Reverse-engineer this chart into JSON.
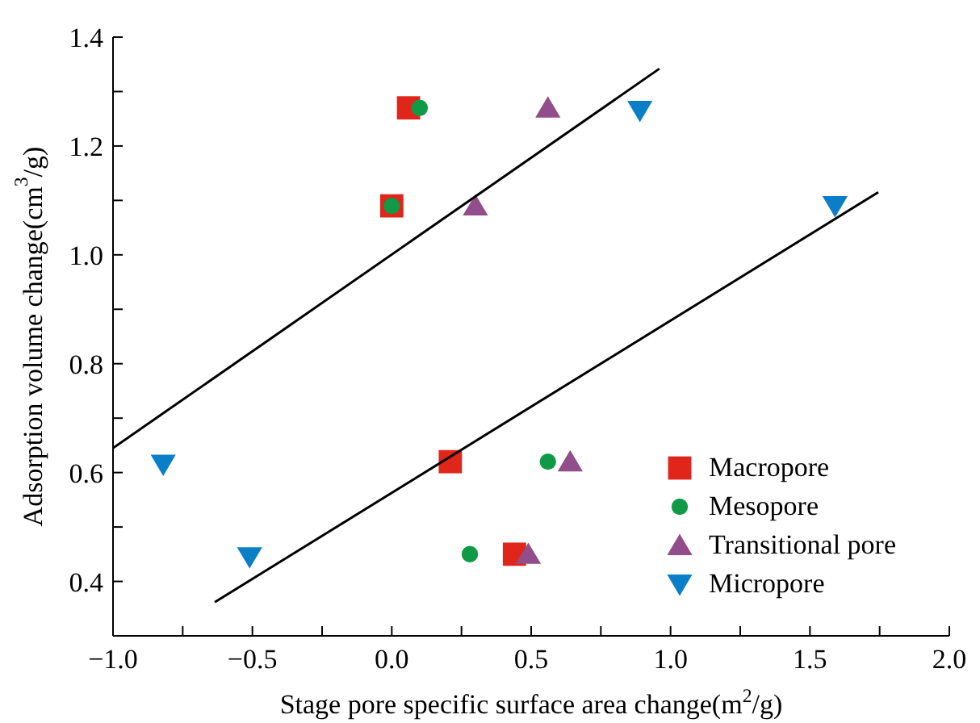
{
  "chart_data": {
    "type": "scatter",
    "xlabel": "Stage pore specific surface area change(m$^{2}$/g)",
    "ylabel": "Adsorption volume change(cm$^{3}$/g)",
    "xlim": [
      -1.0,
      2.0
    ],
    "xticks": [
      {
        "value": -1.0,
        "label": "−1.0"
      },
      {
        "value": -0.75,
        "label": null
      },
      {
        "value": -0.5,
        "label": "−0.5"
      },
      {
        "value": -0.25,
        "label": null
      },
      {
        "value": 0,
        "label": "0.0"
      },
      {
        "value": 0.25,
        "label": null
      },
      {
        "value": 0.5,
        "label": "0.5"
      },
      {
        "value": 0.75,
        "label": null
      },
      {
        "value": 1.0,
        "label": "1.0"
      },
      {
        "value": 1.25,
        "label": null
      },
      {
        "value": 1.5,
        "label": "1.5"
      },
      {
        "value": 1.75,
        "label": null
      },
      {
        "value": 2.0,
        "label": "2.0"
      }
    ],
    "ylim": [
      0.3,
      1.4
    ],
    "yticks": [
      {
        "value": 0.4,
        "label": "0.4"
      },
      {
        "value": 0.5,
        "label": null
      },
      {
        "value": 0.6,
        "label": "0.6"
      },
      {
        "value": 0.7,
        "label": null
      },
      {
        "value": 0.8,
        "label": "0.8"
      },
      {
        "value": 0.9,
        "label": null
      },
      {
        "value": 1.0,
        "label": "1.0"
      },
      {
        "value": 1.1,
        "label": null
      },
      {
        "value": 1.2,
        "label": "1.2"
      },
      {
        "value": 1.3,
        "label": null
      },
      {
        "value": 1.4,
        "label": "1.4"
      }
    ],
    "legend": "bottom right",
    "series": [
      {
        "name": "Macropore",
        "color": "#e0251b",
        "marker": "square",
        "x": [
          0.06,
          0.0,
          0.21,
          0.44
        ],
        "values": [
          1.27,
          1.09,
          0.62,
          0.45
        ]
      },
      {
        "name": "Mesopore",
        "color": "#109a48",
        "marker": "circle",
        "x": [
          0.1,
          0.0,
          0.56,
          0.28
        ],
        "values": [
          1.27,
          1.09,
          0.62,
          0.45
        ]
      },
      {
        "name": "Transitional pore",
        "color": "#914e8a",
        "marker": "triangle",
        "x": [
          0.56,
          0.3,
          0.64,
          0.49
        ],
        "values": [
          1.27,
          1.09,
          0.62,
          0.45
        ]
      },
      {
        "name": "Micropore",
        "color": "#0a7fc8",
        "marker": "triangle-down",
        "x": [
          0.89,
          1.59,
          -0.82,
          -0.51
        ],
        "values": [
          1.265,
          1.09,
          0.615,
          0.445
        ]
      },
      {
        "type": "line",
        "color": "#000000",
        "marker": "none",
        "x": [
          -1.0,
          0.96
        ],
        "values": [
          0.645,
          1.342
        ]
      },
      {
        "type": "line",
        "color": "#000000",
        "marker": "none",
        "x": [
          -0.635,
          1.745
        ],
        "values": [
          0.362,
          1.115
        ]
      }
    ]
  }
}
